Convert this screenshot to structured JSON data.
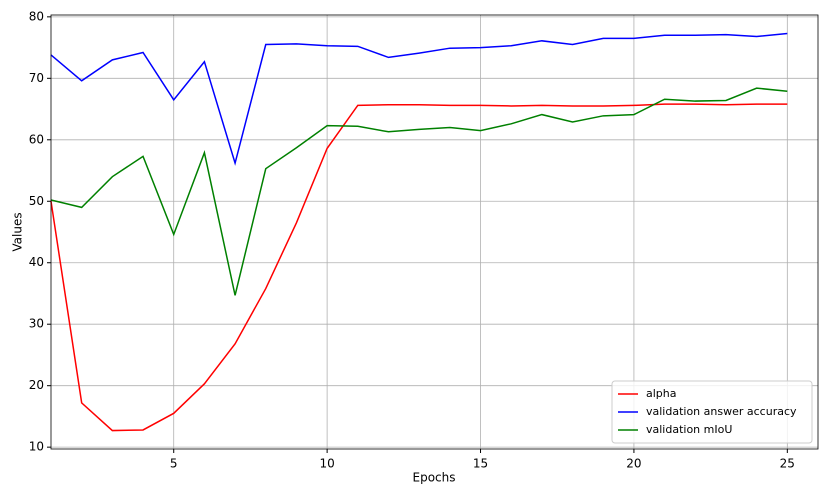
{
  "chart_data": {
    "type": "line",
    "x_label": "Epochs",
    "y_label": "Values",
    "x": [
      1,
      2,
      3,
      4,
      5,
      6,
      7,
      8,
      9,
      10,
      11,
      12,
      13,
      14,
      15,
      16,
      17,
      18,
      19,
      20,
      21,
      22,
      23,
      24,
      25
    ],
    "series": [
      {
        "name": "alpha",
        "color": "#ff0000",
        "values": [
          50,
          17.2,
          12.7,
          12.8,
          15.5,
          20.3,
          26.8,
          35.8,
          46.5,
          58.6,
          65.6,
          65.7,
          65.7,
          65.6,
          65.6,
          65.5,
          65.6,
          65.5,
          65.5,
          65.6,
          65.8,
          65.8,
          65.7,
          65.8,
          65.8
        ]
      },
      {
        "name": "validation answer accuracy",
        "color": "#0000ff",
        "values": [
          73.8,
          69.6,
          73.0,
          74.2,
          66.5,
          72.7,
          56.2,
          75.5,
          75.6,
          75.3,
          75.2,
          73.4,
          74.1,
          74.9,
          75.0,
          75.3,
          76.1,
          75.5,
          76.5,
          76.5,
          77.0,
          77.0,
          77.1,
          76.8,
          77.3
        ]
      },
      {
        "name": "validation mIoU",
        "color": "#008000",
        "values": [
          50.2,
          49.0,
          54.0,
          57.3,
          44.6,
          57.9,
          34.7,
          55.3,
          58.7,
          62.3,
          62.2,
          61.3,
          61.7,
          62.0,
          61.5,
          62.6,
          64.1,
          62.9,
          63.9,
          64.1,
          66.6,
          66.3,
          66.4,
          68.4,
          67.9
        ]
      }
    ],
    "xlim": [
      1,
      26
    ],
    "xticks": [
      5,
      10,
      15,
      20,
      25
    ],
    "ylim": [
      9.7,
      80.3
    ],
    "yticks": [
      10,
      20,
      30,
      40,
      50,
      60,
      70,
      80
    ],
    "grid": true,
    "legend": "lower right"
  }
}
